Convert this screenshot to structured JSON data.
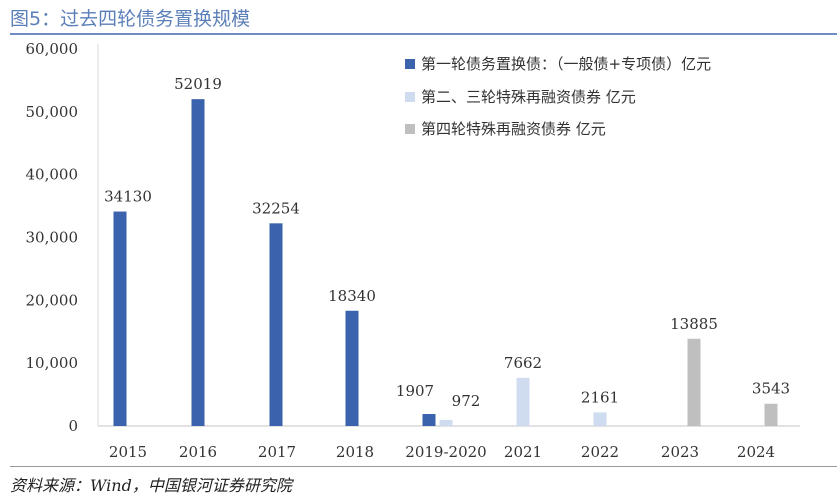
{
  "title": "图5：过去四轮债务置换规模",
  "source": "资料来源：Wind，中国银河证券研究院",
  "chart_data": {
    "type": "bar",
    "title": "过去四轮债务置换规模",
    "categories": [
      "2015",
      "2016",
      "2017",
      "2018",
      "2019-2020",
      "2021",
      "2022",
      "2023",
      "2024"
    ],
    "ylim": [
      0,
      60000
    ],
    "yticks": [
      "0",
      "10,000",
      "20,000",
      "30,000",
      "40,000",
      "50,000",
      "60,000"
    ],
    "legend_position": "top-right",
    "series": [
      {
        "name": "第一轮债务置换债：（一般债+专项债）亿元",
        "color": "#3a62ad",
        "values": [
          34130,
          52019,
          32254,
          18340,
          1907,
          null,
          null,
          null,
          null
        ]
      },
      {
        "name": "第二、三轮特殊再融资债券 亿元",
        "color": "#cfdcef",
        "values": [
          null,
          null,
          null,
          null,
          972,
          7662,
          2161,
          null,
          null
        ]
      },
      {
        "name": "第四轮特殊再融资债券 亿元",
        "color": "#bfbfbf",
        "values": [
          null,
          null,
          null,
          null,
          null,
          null,
          null,
          13885,
          3543
        ]
      }
    ]
  }
}
